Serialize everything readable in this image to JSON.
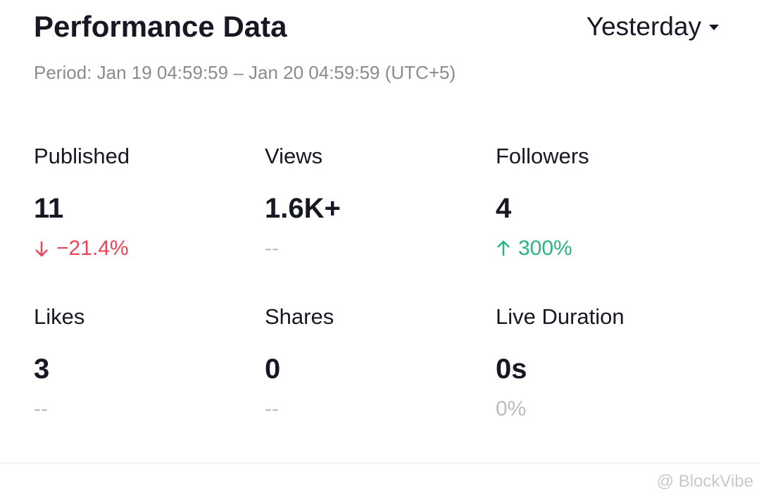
{
  "header": {
    "title": "Performance Data",
    "range": "Yesterday",
    "period": "Period: Jan 19 04:59:59 – Jan 20 04:59:59 (UTC+5)"
  },
  "metrics": [
    {
      "label": "Published",
      "value": "11",
      "change": "−21.4%",
      "trend": "down"
    },
    {
      "label": "Views",
      "value": "1.6K+",
      "change": "--",
      "trend": "none"
    },
    {
      "label": "Followers",
      "value": "4",
      "change": "300%",
      "trend": "up"
    },
    {
      "label": "Likes",
      "value": "3",
      "change": "--",
      "trend": "none"
    },
    {
      "label": "Shares",
      "value": "0",
      "change": "--",
      "trend": "none"
    },
    {
      "label": "Live Duration",
      "value": "0s",
      "change": "0%",
      "trend": "none"
    }
  ],
  "watermark": "@ BlockVibe"
}
